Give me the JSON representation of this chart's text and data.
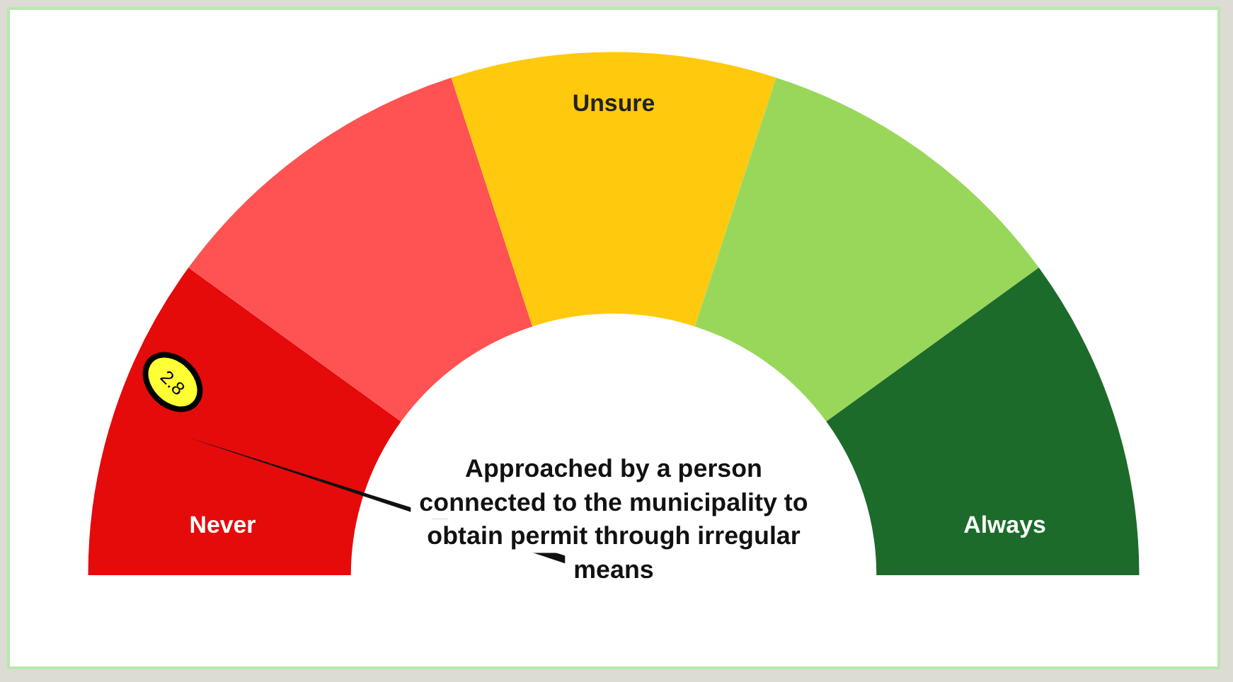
{
  "chart_data": {
    "type": "donut",
    "title": "Approached by a person connected to the municipality to obtain permit through irregular means",
    "categories": [
      "Never",
      null,
      "Unsure",
      null,
      "Always"
    ],
    "values": [
      20,
      20,
      20,
      20,
      20
    ],
    "colors": [
      "#e50b0b",
      "#ff5252",
      "#ffc90e",
      "#99d75a",
      "#1c6b2a"
    ],
    "needle": "Never",
    "annotations": [
      "2.8"
    ],
    "legend": false
  }
}
